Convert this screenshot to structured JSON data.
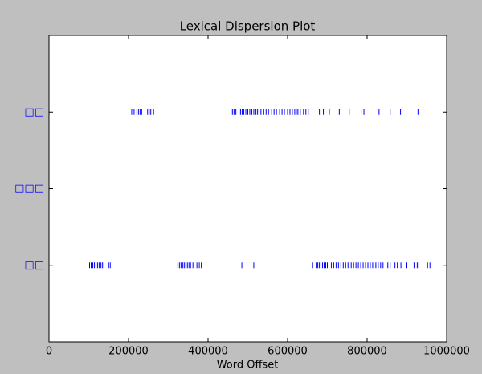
{
  "chart_data": {
    "type": "dispersion",
    "title": "Lexical Dispersion Plot",
    "x_label": "Word Offset",
    "color": "#0000ff",
    "label_color": "#0000ff",
    "xlim": [
      0,
      1000000
    ],
    "xticks": [
      0,
      200000,
      400000,
      600000,
      800000,
      1000000
    ],
    "ylim": [
      -1,
      3
    ],
    "yticks": [
      {
        "value": 0,
        "label": "□□"
      },
      {
        "value": 1,
        "label": "□□□"
      },
      {
        "value": 2,
        "label": "□□"
      }
    ],
    "series": [
      {
        "y": 2,
        "x": [
          208000,
          214000,
          221000,
          225000,
          229000,
          233000,
          248000,
          252000,
          256000,
          263000,
          458000,
          462000,
          466000,
          470000,
          478000,
          482000,
          486000,
          490000,
          495000,
          500000,
          505000,
          510000,
          515000,
          520000,
          524000,
          528000,
          533000,
          540000,
          546000,
          552000,
          560000,
          566000,
          572000,
          580000,
          586000,
          592000,
          600000,
          606000,
          612000,
          618000,
          622000,
          626000,
          632000,
          640000,
          646000,
          652000,
          680000,
          690000,
          705000,
          730000,
          755000,
          785000,
          792000,
          830000,
          858000,
          884000,
          928000
        ]
      },
      {
        "y": 1,
        "x": []
      },
      {
        "y": 0,
        "x": [
          98000,
          102000,
          106000,
          110000,
          114000,
          118000,
          122000,
          126000,
          130000,
          134000,
          138000,
          150000,
          154000,
          324000,
          328000,
          332000,
          336000,
          340000,
          344000,
          348000,
          352000,
          356000,
          362000,
          372000,
          378000,
          383000,
          485000,
          515000,
          663000,
          672000,
          676000,
          680000,
          684000,
          688000,
          692000,
          696000,
          700000,
          704000,
          710000,
          716000,
          722000,
          728000,
          734000,
          740000,
          746000,
          752000,
          760000,
          766000,
          772000,
          778000,
          784000,
          790000,
          796000,
          802000,
          808000,
          814000,
          822000,
          828000,
          834000,
          840000,
          852000,
          858000,
          870000,
          876000,
          885000,
          900000,
          918000,
          926000,
          930000,
          952000,
          958000
        ]
      }
    ]
  }
}
